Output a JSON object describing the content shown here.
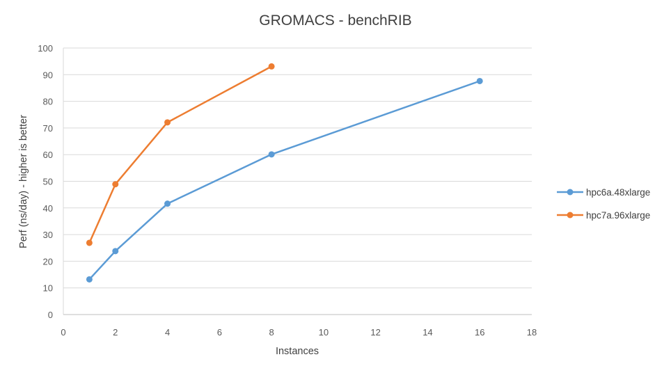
{
  "chart_data": {
    "type": "line",
    "title": "GROMACS - benchRIB",
    "xlabel": "Instances",
    "ylabel": "Perf (ns/day) - higher is better",
    "xlim": [
      0,
      18
    ],
    "ylim": [
      0,
      100
    ],
    "x_ticks": [
      0,
      2,
      4,
      6,
      8,
      10,
      12,
      14,
      16,
      18
    ],
    "y_ticks": [
      0,
      10,
      20,
      30,
      40,
      50,
      60,
      70,
      80,
      90,
      100
    ],
    "grid": {
      "horizontal": true,
      "vertical": false
    },
    "legend_position": "right",
    "series": [
      {
        "name": "hpc6a.48xlarge",
        "color": "#5B9BD5",
        "x": [
          1,
          2,
          4,
          8,
          16
        ],
        "values": [
          13.2,
          23.8,
          41.6,
          60.1,
          87.6
        ]
      },
      {
        "name": "hpc7a.96xlarge",
        "color": "#ED7D31",
        "x": [
          1,
          2,
          4,
          8
        ],
        "values": [
          26.9,
          48.9,
          72.1,
          93.1
        ]
      }
    ]
  }
}
